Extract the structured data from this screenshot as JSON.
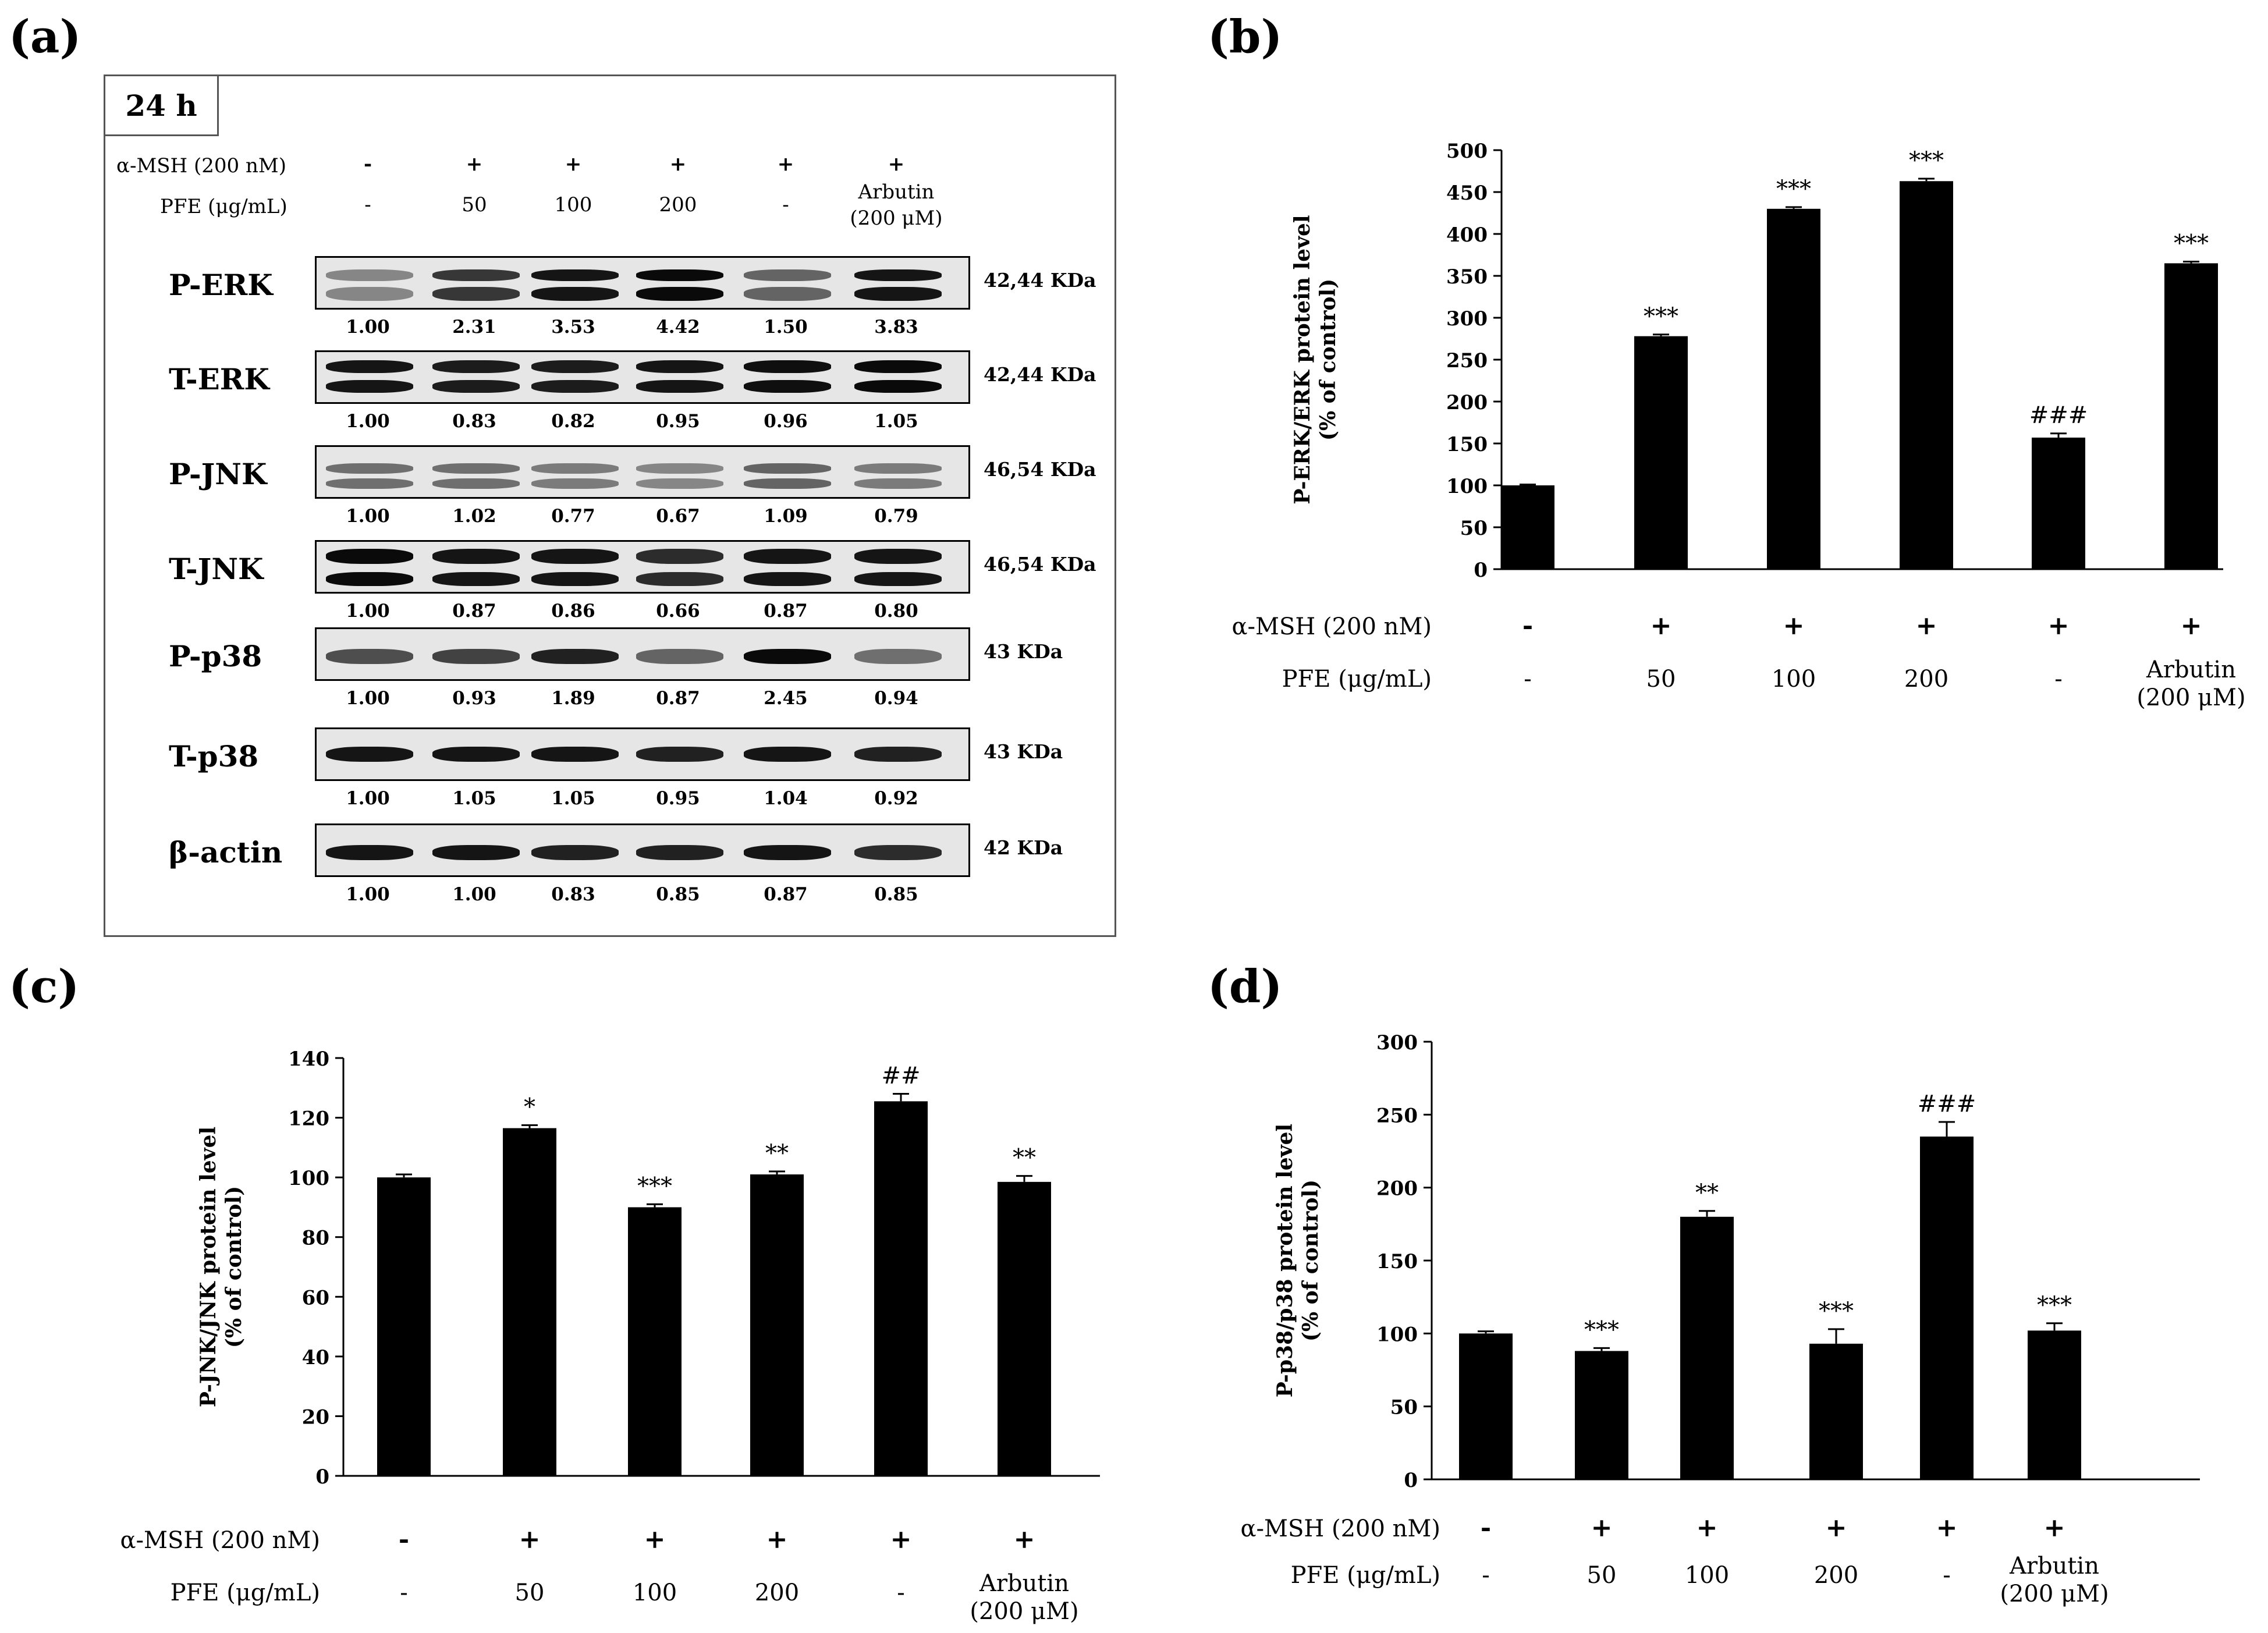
{
  "panels": {
    "a": "(a)",
    "b": "(b)",
    "c": "(c)",
    "d": "(d)"
  },
  "blot": {
    "time": "24 h",
    "row_msh_label": "α-MSH (200 nM)",
    "row_pfe_label": "PFE (μg/mL)",
    "msh": [
      "-",
      "+",
      "+",
      "+",
      "+",
      "+"
    ],
    "pfe": [
      "-",
      "50",
      "100",
      "200",
      "-",
      "Arbutin"
    ],
    "pfe_sub": "(200 μM)",
    "rows": [
      {
        "name": "P-ERK",
        "kda": "42,44 KDa",
        "values": [
          "1.00",
          "2.31",
          "3.53",
          "4.42",
          "1.50",
          "3.83"
        ]
      },
      {
        "name": "T-ERK",
        "kda": "42,44 KDa",
        "values": [
          "1.00",
          "0.83",
          "0.82",
          "0.95",
          "0.96",
          "1.05"
        ]
      },
      {
        "name": "P-JNK",
        "kda": "46,54 KDa",
        "values": [
          "1.00",
          "1.02",
          "0.77",
          "0.67",
          "1.09",
          "0.79"
        ]
      },
      {
        "name": "T-JNK",
        "kda": "46,54 KDa",
        "values": [
          "1.00",
          "0.87",
          "0.86",
          "0.66",
          "0.87",
          "0.80"
        ]
      },
      {
        "name": "P-p38",
        "kda": "43 KDa",
        "values": [
          "1.00",
          "0.93",
          "1.89",
          "0.87",
          "2.45",
          "0.94"
        ]
      },
      {
        "name": "T-p38",
        "kda": "43 KDa",
        "values": [
          "1.00",
          "1.05",
          "1.05",
          "0.95",
          "1.04",
          "0.92"
        ]
      },
      {
        "name": "β-actin",
        "kda": "42 KDa",
        "values": [
          "1.00",
          "1.00",
          "0.83",
          "0.85",
          "0.87",
          "0.85"
        ]
      }
    ]
  },
  "chart_data": [
    {
      "panel": "b",
      "type": "bar",
      "ylabel_line1": "P-ERK/ERK protein level",
      "ylabel_line2": "(% of control)",
      "ylim": [
        0,
        500
      ],
      "yticks": [
        "0",
        "50",
        "100",
        "150",
        "200",
        "250",
        "300",
        "350",
        "400",
        "450",
        "500"
      ],
      "values": [
        100,
        278,
        430,
        463,
        157,
        365
      ],
      "errors": [
        1,
        2,
        2,
        3,
        5,
        2
      ],
      "annotations": [
        "",
        "***",
        "***",
        "***",
        "###",
        "***"
      ],
      "msh_label": "α-MSH (200 nM)",
      "pfe_label": "PFE (μg/mL)",
      "msh": [
        "-",
        "+",
        "+",
        "+",
        "+",
        "+"
      ],
      "pfe": [
        "-",
        "50",
        "100",
        "200",
        "-",
        "Arbutin"
      ],
      "pfe_sub": "(200 μM)"
    },
    {
      "panel": "c",
      "type": "bar",
      "ylabel_line1": "P-JNK/JNK protein level",
      "ylabel_line2": "(% of control)",
      "ylim": [
        0,
        140
      ],
      "yticks": [
        "0",
        "20",
        "40",
        "60",
        "80",
        "100",
        "120",
        "140"
      ],
      "values": [
        100,
        116.5,
        90,
        101,
        125.5,
        98.5
      ],
      "errors": [
        1,
        1,
        1,
        1,
        2.5,
        2
      ],
      "annotations": [
        "",
        "*",
        "***",
        "**",
        "##",
        "**"
      ],
      "msh_label": "α-MSH (200 nM)",
      "pfe_label": "PFE (μg/mL)",
      "msh": [
        "-",
        "+",
        "+",
        "+",
        "+",
        "+"
      ],
      "pfe": [
        "-",
        "50",
        "100",
        "200",
        "-",
        "Arbutin"
      ],
      "pfe_sub": "(200 μM)"
    },
    {
      "panel": "d",
      "type": "bar",
      "ylabel_line1": "P-p38/p38 protein level",
      "ylabel_line2": "(% of control)",
      "ylim": [
        0,
        300
      ],
      "yticks": [
        "0",
        "50",
        "100",
        "150",
        "200",
        "250",
        "300"
      ],
      "values": [
        100,
        88,
        180,
        93,
        235,
        102
      ],
      "errors": [
        1.5,
        2,
        4,
        10,
        10,
        5
      ],
      "annotations": [
        "",
        "***",
        "**",
        "***",
        "###",
        "***"
      ],
      "msh_label": "α-MSH (200 nM)",
      "pfe_label": "PFE (μg/mL)",
      "msh": [
        "-",
        "+",
        "+",
        "+",
        "+",
        "+"
      ],
      "pfe": [
        "-",
        "50",
        "100",
        "200",
        "-",
        "Arbutin"
      ],
      "pfe_sub": "(200 μM)"
    }
  ]
}
